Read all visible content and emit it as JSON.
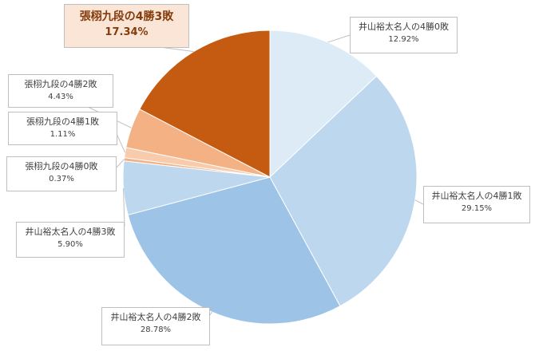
{
  "chart_data": {
    "type": "pie",
    "start_angle": "top, clockwise",
    "slices": [
      {
        "label": "井山裕太名人の4勝0敗",
        "value": 12.92,
        "value_label": "12.92%",
        "color": "#ddebf7"
      },
      {
        "label": "井山裕太名人の4勝1敗",
        "value": 29.15,
        "value_label": "29.15%",
        "color": "#bdd7ee"
      },
      {
        "label": "井山裕太名人の4勝2敗",
        "value": 28.78,
        "value_label": "28.78%",
        "color": "#9dc3e6"
      },
      {
        "label": "井山裕太名人の4勝3敗",
        "value": 5.9,
        "value_label": "5.90%",
        "color": "#bdd7ee"
      },
      {
        "label": "張栩九段の4勝0敗",
        "value": 0.37,
        "value_label": "0.37%",
        "color": "#f4b183"
      },
      {
        "label": "張栩九段の4勝1敗",
        "value": 1.11,
        "value_label": "1.11%",
        "color": "#f8cbad"
      },
      {
        "label": "張栩九段の4勝2敗",
        "value": 4.43,
        "value_label": "4.43%",
        "color": "#f4b183"
      },
      {
        "label": "張栩九段の4勝3敗",
        "value": 17.34,
        "value_label": "17.34%",
        "color": "#c55a11",
        "highlighted": true
      }
    ]
  }
}
